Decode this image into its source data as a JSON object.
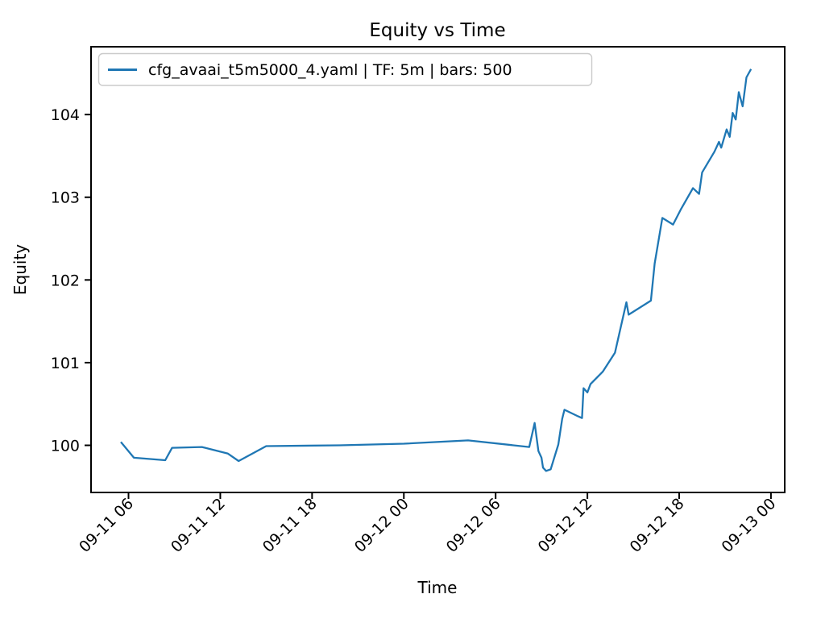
{
  "figure": {
    "background": "#ffffff",
    "text_color": "#000000",
    "spine_color": "#000000",
    "legend_border_color": "#cbcbcb",
    "legend_background": "#ffffff"
  },
  "chart_data": {
    "type": "line",
    "title": "Equity vs Time",
    "xlabel": "Time",
    "ylabel": "Equity",
    "legend_position": "upper left",
    "grid": false,
    "x_axis": {
      "unit": "hours since 09-11 00:00",
      "lim": [
        3.55,
        48.9
      ],
      "ticks": [
        {
          "h": 6,
          "label": "09-11 06"
        },
        {
          "h": 12,
          "label": "09-11 12"
        },
        {
          "h": 18,
          "label": "09-11 18"
        },
        {
          "h": 24,
          "label": "09-12 00"
        },
        {
          "h": 30,
          "label": "09-12 06"
        },
        {
          "h": 36,
          "label": "09-12 12"
        },
        {
          "h": 42,
          "label": "09-12 18"
        },
        {
          "h": 48,
          "label": "09-13 00"
        }
      ],
      "tick_rotation_deg": 45
    },
    "y_axis": {
      "lim": [
        99.43,
        104.82
      ],
      "ticks": [
        100,
        101,
        102,
        103,
        104
      ]
    },
    "series": [
      {
        "name": "cfg_avaai_t5m5000_4.yaml | TF: 5m | bars: 500",
        "color": "#1f77b4",
        "line_width": 2.3,
        "points": [
          [
            5.5,
            100.04
          ],
          [
            6.35,
            99.85
          ],
          [
            8.4,
            99.82
          ],
          [
            8.85,
            99.97
          ],
          [
            10.8,
            99.98
          ],
          [
            12.5,
            99.9
          ],
          [
            13.2,
            99.81
          ],
          [
            15.0,
            99.99
          ],
          [
            19.8,
            100.0
          ],
          [
            24.0,
            100.02
          ],
          [
            28.2,
            100.06
          ],
          [
            32.2,
            99.98
          ],
          [
            32.55,
            100.27
          ],
          [
            32.8,
            99.93
          ],
          [
            33.0,
            99.85
          ],
          [
            33.1,
            99.73
          ],
          [
            33.3,
            99.69
          ],
          [
            33.6,
            99.71
          ],
          [
            34.1,
            100.01
          ],
          [
            34.35,
            100.32
          ],
          [
            34.5,
            100.43
          ],
          [
            35.4,
            100.35
          ],
          [
            35.65,
            100.33
          ],
          [
            35.75,
            100.69
          ],
          [
            36.0,
            100.64
          ],
          [
            36.2,
            100.74
          ],
          [
            37.0,
            100.89
          ],
          [
            37.8,
            101.12
          ],
          [
            38.55,
            101.73
          ],
          [
            38.7,
            101.58
          ],
          [
            40.15,
            101.75
          ],
          [
            40.4,
            102.2
          ],
          [
            40.9,
            102.75
          ],
          [
            41.6,
            102.67
          ],
          [
            42.1,
            102.85
          ],
          [
            42.9,
            103.11
          ],
          [
            43.3,
            103.04
          ],
          [
            43.5,
            103.3
          ],
          [
            44.3,
            103.55
          ],
          [
            44.6,
            103.67
          ],
          [
            44.75,
            103.6
          ],
          [
            45.1,
            103.82
          ],
          [
            45.3,
            103.73
          ],
          [
            45.5,
            104.02
          ],
          [
            45.7,
            103.94
          ],
          [
            45.9,
            104.27
          ],
          [
            46.15,
            104.1
          ],
          [
            46.4,
            104.45
          ],
          [
            46.7,
            104.55
          ]
        ]
      }
    ]
  }
}
